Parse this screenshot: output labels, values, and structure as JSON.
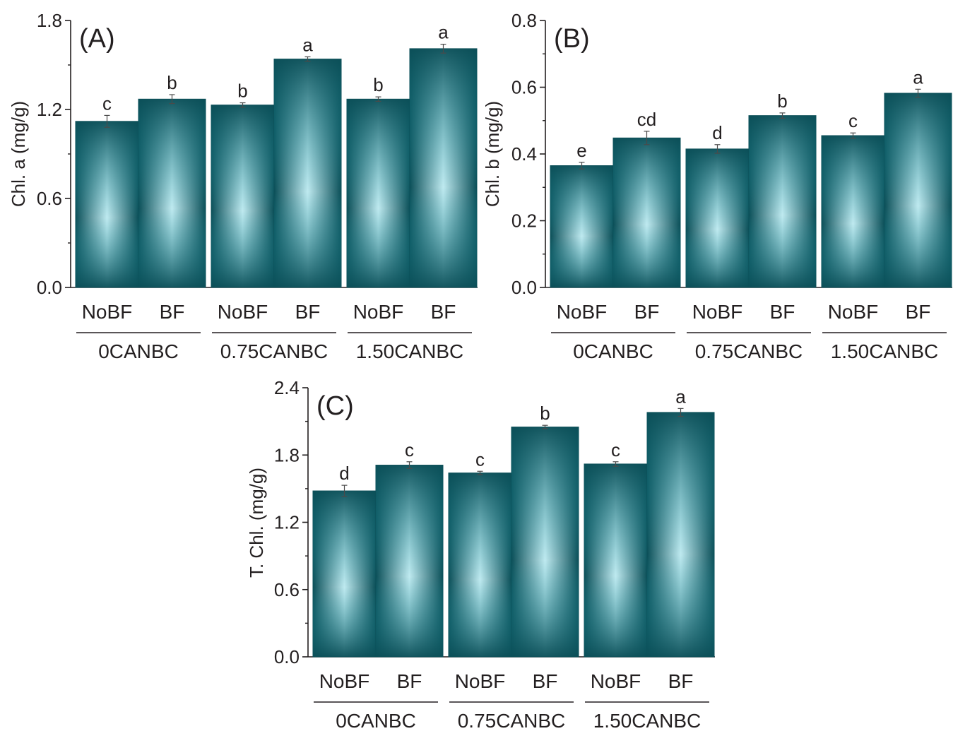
{
  "chart_data": [
    {
      "type": "bar",
      "panel_label": "(A)",
      "ylabel": "Chl. a (mg/g)",
      "ylim": [
        0,
        1.8
      ],
      "yticks": [
        "0.0",
        "0.6",
        "1.2",
        "1.8"
      ],
      "categories": [
        "NoBF",
        "BF",
        "NoBF",
        "BF",
        "NoBF",
        "BF"
      ],
      "groups": [
        "0CANBC",
        "0.75CANBC",
        "1.50CANBC"
      ],
      "values": [
        1.12,
        1.27,
        1.23,
        1.54,
        1.27,
        1.61
      ],
      "errors": [
        0.04,
        0.03,
        0.015,
        0.015,
        0.015,
        0.03
      ],
      "letters": [
        "c",
        "b",
        "b",
        "a",
        "b",
        "a"
      ],
      "bar_color": "#1e8d9a",
      "bar_edge_color": "#0b4f58",
      "bar_highlight_color": "#bfeaf0"
    },
    {
      "type": "bar",
      "panel_label": "(B)",
      "ylabel": "Chl. b (mg/g)",
      "ylim": [
        0,
        0.8
      ],
      "yticks": [
        "0.0",
        "0.2",
        "0.4",
        "0.6",
        "0.8"
      ],
      "categories": [
        "NoBF",
        "BF",
        "NoBF",
        "BF",
        "NoBF",
        "BF"
      ],
      "groups": [
        "0CANBC",
        "0.75CANBC",
        "1.50CANBC"
      ],
      "values": [
        0.365,
        0.448,
        0.415,
        0.515,
        0.455,
        0.582
      ],
      "errors": [
        0.01,
        0.02,
        0.013,
        0.008,
        0.008,
        0.012
      ],
      "letters": [
        "e",
        "cd",
        "d",
        "b",
        "c",
        "a"
      ],
      "bar_color": "#1e8d9a",
      "bar_edge_color": "#0b4f58",
      "bar_highlight_color": "#bfeaf0"
    },
    {
      "type": "bar",
      "panel_label": "(C)",
      "ylabel": "T. Chl. (mg/g)",
      "ylim": [
        0,
        2.4
      ],
      "yticks": [
        "0.0",
        "0.6",
        "1.2",
        "1.8",
        "2.4"
      ],
      "categories": [
        "NoBF",
        "BF",
        "NoBF",
        "BF",
        "NoBF",
        "BF"
      ],
      "groups": [
        "0CANBC",
        "0.75CANBC",
        "1.50CANBC"
      ],
      "values": [
        1.48,
        1.71,
        1.64,
        2.05,
        1.72,
        2.18
      ],
      "errors": [
        0.05,
        0.03,
        0.015,
        0.015,
        0.02,
        0.035
      ],
      "letters": [
        "d",
        "c",
        "c",
        "b",
        "c",
        "a"
      ],
      "bar_color": "#1e8d9a",
      "bar_edge_color": "#0b4f58",
      "bar_highlight_color": "#bfeaf0"
    }
  ]
}
